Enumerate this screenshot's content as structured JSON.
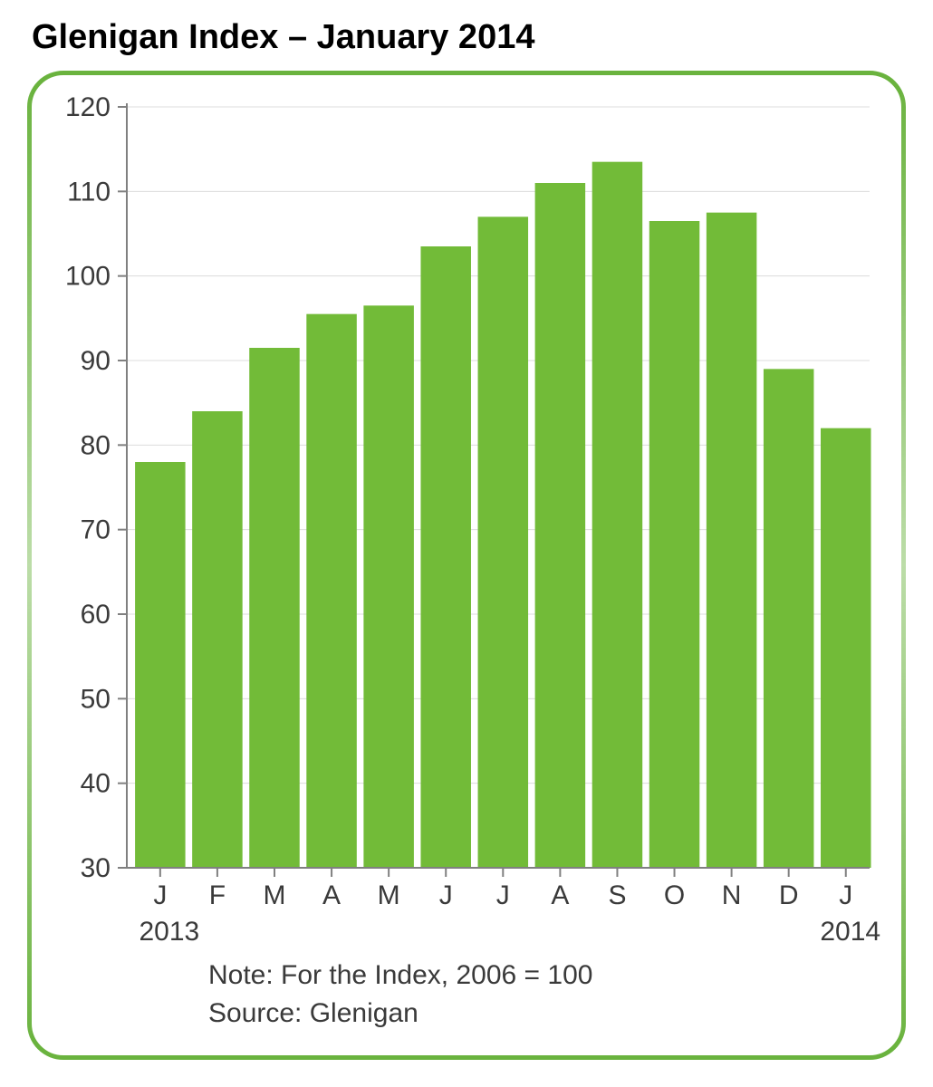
{
  "title": "Glenigan Index – January 2014",
  "chart": {
    "type": "bar",
    "categories": [
      "J",
      "F",
      "M",
      "A",
      "M",
      "J",
      "J",
      "A",
      "S",
      "O",
      "N",
      "D",
      "J"
    ],
    "values": [
      78.0,
      84.0,
      91.5,
      95.5,
      96.5,
      103.5,
      107.0,
      111.0,
      113.5,
      106.5,
      107.5,
      89.0,
      82.0
    ],
    "bar_color": "#72bb38",
    "background_color": "#ffffff",
    "grid_color": "#dcdcdc",
    "axis_color": "#808080",
    "tick_label_color": "#3a3a3a",
    "ylim": [
      30,
      120
    ],
    "ytick_step": 10,
    "bar_gap_ratio": 0.12,
    "tick_fontsize": 30,
    "year_start": "2013",
    "year_end": "2014",
    "note_line1": "Note: For the Index, 2006 = 100",
    "note_line2": "Source: Glenigan",
    "border_color": "#6ab33e",
    "border_radius": 40,
    "title_fontsize": 38,
    "title_color": "#000000"
  }
}
